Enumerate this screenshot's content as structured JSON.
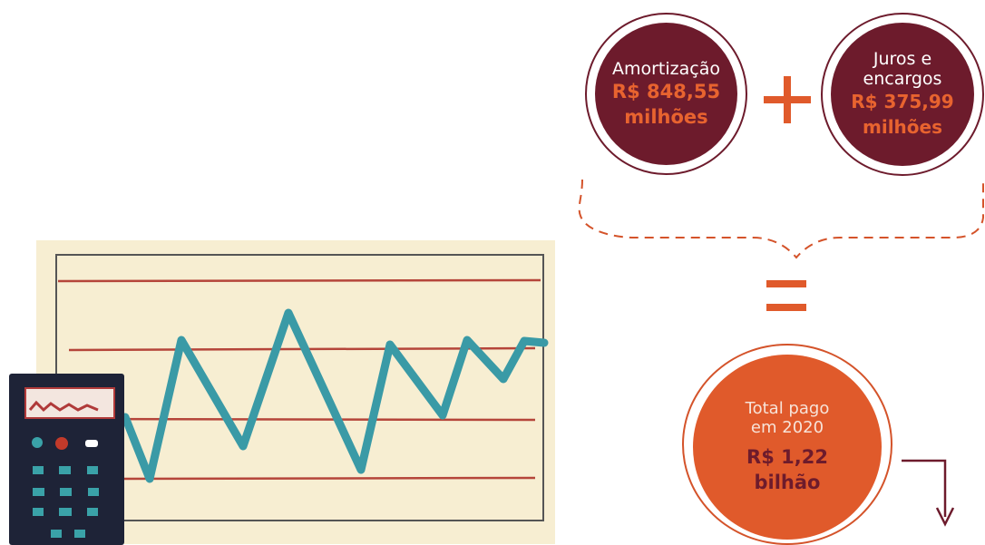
{
  "amortization": {
    "label": "Amortização",
    "value_line1": "R$ 848,55",
    "value_line2": "milhões"
  },
  "interest": {
    "label_line1": "Juros e",
    "label_line2": "encargos",
    "value_line1": "R$ 375,99",
    "value_line2": "milhões"
  },
  "total": {
    "label_line1": "Total pago",
    "label_line2": "em 2020",
    "value_line1": "R$ 1,22",
    "value_line2": "bilhão"
  },
  "operators": {
    "plus": "plus-sign",
    "equals": "equals-sign"
  },
  "colors": {
    "maroon": "#6d1b2c",
    "orange": "#e05a2b",
    "accent": "#e8632f",
    "chart_line": "#3a9aa6",
    "chart_rule": "#b5453a"
  }
}
